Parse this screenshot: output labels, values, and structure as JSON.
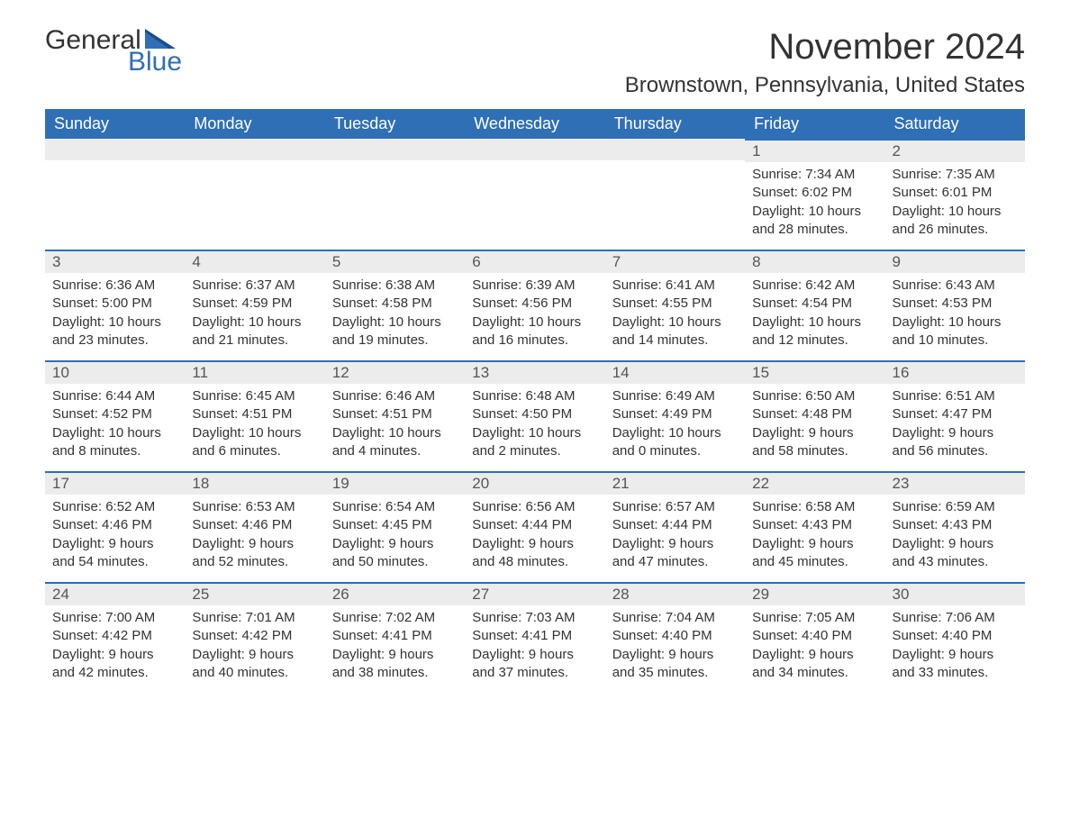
{
  "logo": {
    "word1": "General",
    "word2": "Blue"
  },
  "colors": {
    "header_bg": "#2f6fb5",
    "header_text": "#ffffff",
    "border_top": "#2f6fb5",
    "daynum_bg": "#ececec",
    "daynum_text": "#555555",
    "body_text": "#333333",
    "logo_blue": "#2f6fb5",
    "background": "#ffffff"
  },
  "title": "November 2024",
  "location": "Brownstown, Pennsylvania, United States",
  "days_of_week": [
    "Sunday",
    "Monday",
    "Tuesday",
    "Wednesday",
    "Thursday",
    "Friday",
    "Saturday"
  ],
  "first_weekday_index": 5,
  "days": [
    {
      "n": 1,
      "sunrise": "7:34 AM",
      "sunset": "6:02 PM",
      "daylight": "10 hours and 28 minutes."
    },
    {
      "n": 2,
      "sunrise": "7:35 AM",
      "sunset": "6:01 PM",
      "daylight": "10 hours and 26 minutes."
    },
    {
      "n": 3,
      "sunrise": "6:36 AM",
      "sunset": "5:00 PM",
      "daylight": "10 hours and 23 minutes."
    },
    {
      "n": 4,
      "sunrise": "6:37 AM",
      "sunset": "4:59 PM",
      "daylight": "10 hours and 21 minutes."
    },
    {
      "n": 5,
      "sunrise": "6:38 AM",
      "sunset": "4:58 PM",
      "daylight": "10 hours and 19 minutes."
    },
    {
      "n": 6,
      "sunrise": "6:39 AM",
      "sunset": "4:56 PM",
      "daylight": "10 hours and 16 minutes."
    },
    {
      "n": 7,
      "sunrise": "6:41 AM",
      "sunset": "4:55 PM",
      "daylight": "10 hours and 14 minutes."
    },
    {
      "n": 8,
      "sunrise": "6:42 AM",
      "sunset": "4:54 PM",
      "daylight": "10 hours and 12 minutes."
    },
    {
      "n": 9,
      "sunrise": "6:43 AM",
      "sunset": "4:53 PM",
      "daylight": "10 hours and 10 minutes."
    },
    {
      "n": 10,
      "sunrise": "6:44 AM",
      "sunset": "4:52 PM",
      "daylight": "10 hours and 8 minutes."
    },
    {
      "n": 11,
      "sunrise": "6:45 AM",
      "sunset": "4:51 PM",
      "daylight": "10 hours and 6 minutes."
    },
    {
      "n": 12,
      "sunrise": "6:46 AM",
      "sunset": "4:51 PM",
      "daylight": "10 hours and 4 minutes."
    },
    {
      "n": 13,
      "sunrise": "6:48 AM",
      "sunset": "4:50 PM",
      "daylight": "10 hours and 2 minutes."
    },
    {
      "n": 14,
      "sunrise": "6:49 AM",
      "sunset": "4:49 PM",
      "daylight": "10 hours and 0 minutes."
    },
    {
      "n": 15,
      "sunrise": "6:50 AM",
      "sunset": "4:48 PM",
      "daylight": "9 hours and 58 minutes."
    },
    {
      "n": 16,
      "sunrise": "6:51 AM",
      "sunset": "4:47 PM",
      "daylight": "9 hours and 56 minutes."
    },
    {
      "n": 17,
      "sunrise": "6:52 AM",
      "sunset": "4:46 PM",
      "daylight": "9 hours and 54 minutes."
    },
    {
      "n": 18,
      "sunrise": "6:53 AM",
      "sunset": "4:46 PM",
      "daylight": "9 hours and 52 minutes."
    },
    {
      "n": 19,
      "sunrise": "6:54 AM",
      "sunset": "4:45 PM",
      "daylight": "9 hours and 50 minutes."
    },
    {
      "n": 20,
      "sunrise": "6:56 AM",
      "sunset": "4:44 PM",
      "daylight": "9 hours and 48 minutes."
    },
    {
      "n": 21,
      "sunrise": "6:57 AM",
      "sunset": "4:44 PM",
      "daylight": "9 hours and 47 minutes."
    },
    {
      "n": 22,
      "sunrise": "6:58 AM",
      "sunset": "4:43 PM",
      "daylight": "9 hours and 45 minutes."
    },
    {
      "n": 23,
      "sunrise": "6:59 AM",
      "sunset": "4:43 PM",
      "daylight": "9 hours and 43 minutes."
    },
    {
      "n": 24,
      "sunrise": "7:00 AM",
      "sunset": "4:42 PM",
      "daylight": "9 hours and 42 minutes."
    },
    {
      "n": 25,
      "sunrise": "7:01 AM",
      "sunset": "4:42 PM",
      "daylight": "9 hours and 40 minutes."
    },
    {
      "n": 26,
      "sunrise": "7:02 AM",
      "sunset": "4:41 PM",
      "daylight": "9 hours and 38 minutes."
    },
    {
      "n": 27,
      "sunrise": "7:03 AM",
      "sunset": "4:41 PM",
      "daylight": "9 hours and 37 minutes."
    },
    {
      "n": 28,
      "sunrise": "7:04 AM",
      "sunset": "4:40 PM",
      "daylight": "9 hours and 35 minutes."
    },
    {
      "n": 29,
      "sunrise": "7:05 AM",
      "sunset": "4:40 PM",
      "daylight": "9 hours and 34 minutes."
    },
    {
      "n": 30,
      "sunrise": "7:06 AM",
      "sunset": "4:40 PM",
      "daylight": "9 hours and 33 minutes."
    }
  ],
  "labels": {
    "sunrise": "Sunrise: ",
    "sunset": "Sunset: ",
    "daylight": "Daylight: "
  }
}
